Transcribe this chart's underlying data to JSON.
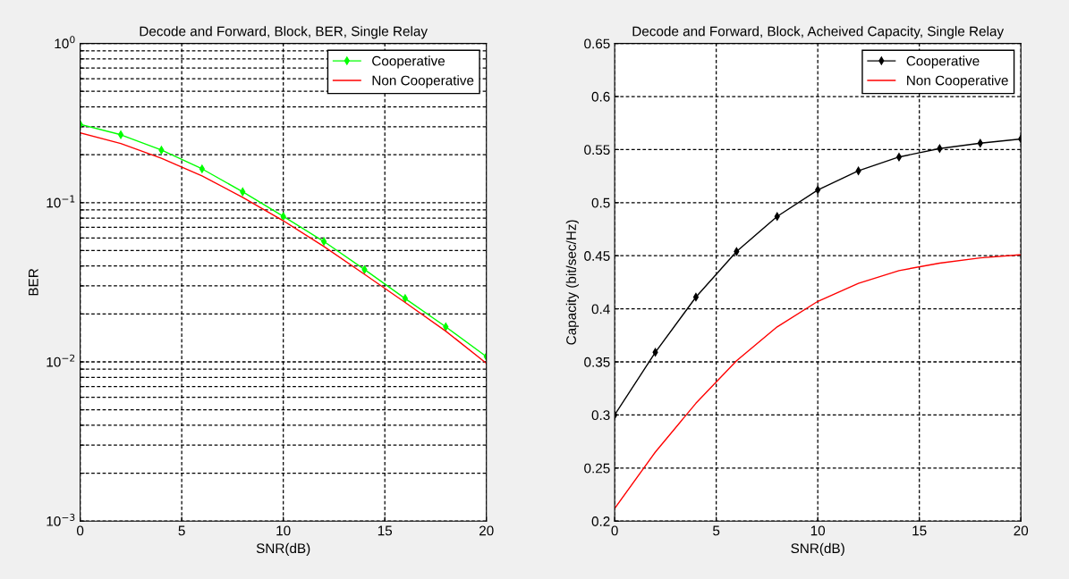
{
  "chart_data": [
    {
      "type": "line",
      "title": "Decode and Forward, Block, BER, Single Relay",
      "xlabel": "SNR(dB)",
      "ylabel": "BER",
      "log": "y",
      "grid": true,
      "legend": "top right",
      "x": [
        0,
        2,
        4,
        6,
        8,
        10,
        12,
        14,
        16,
        18,
        20
      ],
      "series": [
        {
          "name": "Cooperative",
          "color": "#00ff00",
          "marker": "diamond",
          "values": [
            0.31,
            0.267,
            0.214,
            0.163,
            0.117,
            0.082,
            0.057,
            0.038,
            0.025,
            0.0166,
            0.0108
          ]
        },
        {
          "name": "Non Cooperative",
          "color": "#ff0000",
          "marker": "none",
          "values": [
            0.274,
            0.235,
            0.19,
            0.147,
            0.108,
            0.077,
            0.053,
            0.0355,
            0.0236,
            0.0156,
            0.0098
          ]
        }
      ],
      "xlim": [
        0,
        20
      ],
      "xticks": [
        0,
        5,
        10,
        15,
        20
      ],
      "ylim": [
        0.001,
        1
      ],
      "yticks": [
        {
          "value": 0.001,
          "label": "10$^{−3}$"
        },
        {
          "value": 0.002,
          "label": null
        },
        {
          "value": 0.003,
          "label": null
        },
        {
          "value": 0.004,
          "label": null
        },
        {
          "value": 0.005,
          "label": null
        },
        {
          "value": 0.006,
          "label": null
        },
        {
          "value": 0.007,
          "label": null
        },
        {
          "value": 0.008,
          "label": null
        },
        {
          "value": 0.009,
          "label": null
        },
        {
          "value": 0.01,
          "label": "10$^{−2}$"
        },
        {
          "value": 0.02,
          "label": null
        },
        {
          "value": 0.03,
          "label": null
        },
        {
          "value": 0.04,
          "label": null
        },
        {
          "value": 0.05,
          "label": null
        },
        {
          "value": 0.06,
          "label": null
        },
        {
          "value": 0.07,
          "label": null
        },
        {
          "value": 0.08,
          "label": null
        },
        {
          "value": 0.09,
          "label": null
        },
        {
          "value": 0.1,
          "label": "10$^{−1}$"
        },
        {
          "value": 0.2,
          "label": null
        },
        {
          "value": 0.3,
          "label": null
        },
        {
          "value": 0.4,
          "label": null
        },
        {
          "value": 0.5,
          "label": null
        },
        {
          "value": 0.6,
          "label": null
        },
        {
          "value": 0.7,
          "label": null
        },
        {
          "value": 0.8,
          "label": null
        },
        {
          "value": 0.9,
          "label": null
        },
        {
          "value": 1,
          "label": "10$^{0}$"
        }
      ]
    },
    {
      "type": "line",
      "title": "Decode and Forward, Block, Acheived Capacity, Single Relay",
      "xlabel": "SNR(dB)",
      "ylabel": "Capacity (bit/sec/Hz)",
      "grid": true,
      "legend": "top right",
      "x": [
        0,
        2,
        4,
        6,
        8,
        10,
        12,
        14,
        16,
        18,
        20
      ],
      "series": [
        {
          "name": "Cooperative",
          "color": "#000000",
          "marker": "diamond",
          "values": [
            0.3,
            0.359,
            0.411,
            0.454,
            0.487,
            0.512,
            0.53,
            0.543,
            0.551,
            0.556,
            0.56
          ]
        },
        {
          "name": "Non Cooperative",
          "color": "#ff0000",
          "marker": "none",
          "values": [
            0.212,
            0.265,
            0.311,
            0.351,
            0.383,
            0.407,
            0.424,
            0.436,
            0.443,
            0.448,
            0.451
          ]
        }
      ],
      "xlim": [
        0,
        20
      ],
      "xticks": [
        0,
        5,
        10,
        15,
        20
      ],
      "ylim": [
        0.2,
        0.65
      ],
      "yticks": [
        0.2,
        0.25,
        0.3,
        0.35,
        0.4,
        0.45,
        0.5,
        0.55,
        0.6,
        0.65
      ]
    }
  ]
}
